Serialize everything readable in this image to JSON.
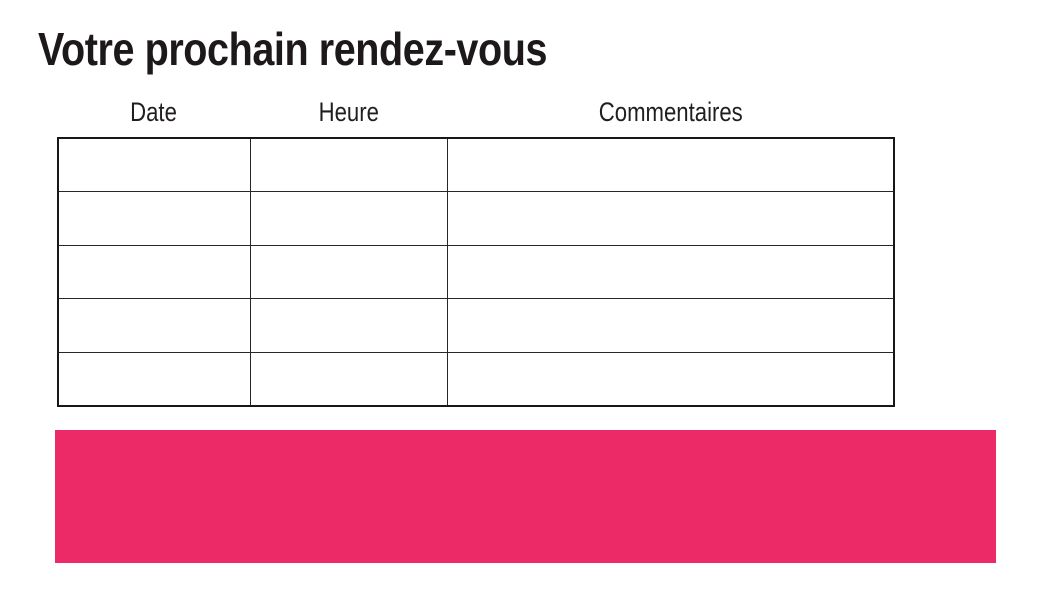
{
  "page": {
    "title": "Votre prochain rendez-vous"
  },
  "table": {
    "columns": [
      {
        "label": "Date"
      },
      {
        "label": "Heure"
      },
      {
        "label": "Commentaires"
      }
    ],
    "rows": [
      [
        "",
        "",
        ""
      ],
      [
        "",
        "",
        ""
      ],
      [
        "",
        "",
        ""
      ],
      [
        "",
        "",
        ""
      ],
      [
        "",
        "",
        ""
      ]
    ]
  },
  "banner": {
    "color": "#ED2A68",
    "text": ""
  },
  "colors": {
    "title_text": "#1D191A",
    "table_border": "#1B1718"
  }
}
